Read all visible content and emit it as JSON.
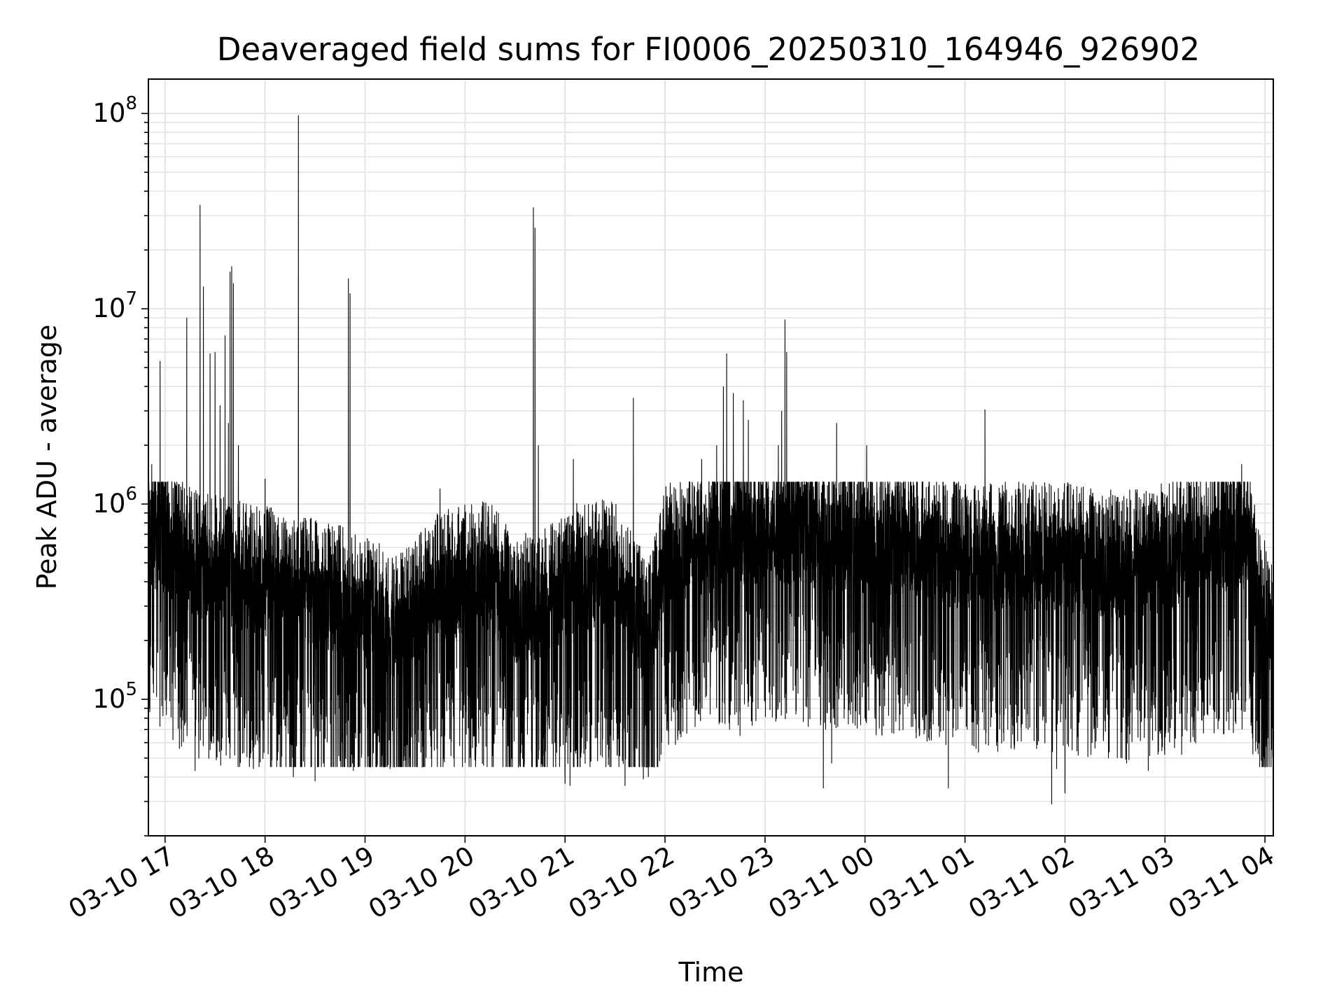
{
  "chart_data": {
    "type": "line",
    "title": "Deaveraged field sums for FI0006_20250310_164946_926902",
    "xlabel": "Time",
    "ylabel": "Peak ADU - average",
    "yscale": "log",
    "xlim": [
      "2025-03-10 16:50",
      "2025-03-11 04:05"
    ],
    "ylim": [
      20000,
      150000000
    ],
    "grid": true,
    "grid_minor": true,
    "line_color": "#000000",
    "x_ticks": [
      {
        "value": "2025-03-10 17:00",
        "label": "03-10 17"
      },
      {
        "value": "2025-03-10 18:00",
        "label": "03-10 18"
      },
      {
        "value": "2025-03-10 19:00",
        "label": "03-10 19"
      },
      {
        "value": "2025-03-10 20:00",
        "label": "03-10 20"
      },
      {
        "value": "2025-03-10 21:00",
        "label": "03-10 21"
      },
      {
        "value": "2025-03-10 22:00",
        "label": "03-10 22"
      },
      {
        "value": "2025-03-10 23:00",
        "label": "03-10 23"
      },
      {
        "value": "2025-03-11 00:00",
        "label": "03-11 00"
      },
      {
        "value": "2025-03-11 01:00",
        "label": "03-11 01"
      },
      {
        "value": "2025-03-11 02:00",
        "label": "03-11 02"
      },
      {
        "value": "2025-03-11 03:00",
        "label": "03-11 03"
      },
      {
        "value": "2025-03-11 04:00",
        "label": "03-11 04"
      }
    ],
    "y_ticks": [
      {
        "value": 100000,
        "base": "10",
        "exp": "5"
      },
      {
        "value": 1000000,
        "base": "10",
        "exp": "6"
      },
      {
        "value": 10000000,
        "base": "10",
        "exp": "7"
      },
      {
        "value": 100000000,
        "base": "10",
        "exp": "8"
      }
    ],
    "baseline_series": [
      [
        "2025-03-10 16:50",
        650000
      ],
      [
        "2025-03-10 17:20",
        420000
      ],
      [
        "2025-03-10 17:45",
        380000
      ],
      [
        "2025-03-10 18:15",
        320000
      ],
      [
        "2025-03-10 18:45",
        280000
      ],
      [
        "2025-03-10 19:20",
        200000
      ],
      [
        "2025-03-10 19:45",
        330000
      ],
      [
        "2025-03-10 20:15",
        380000
      ],
      [
        "2025-03-10 20:30",
        250000
      ],
      [
        "2025-03-10 20:45",
        260000
      ],
      [
        "2025-03-10 21:05",
        360000
      ],
      [
        "2025-03-10 21:30",
        380000
      ],
      [
        "2025-03-10 21:50",
        180000
      ],
      [
        "2025-03-10 22:00",
        450000
      ],
      [
        "2025-03-10 22:30",
        600000
      ],
      [
        "2025-03-10 23:00",
        660000
      ],
      [
        "2025-03-10 23:30",
        620000
      ],
      [
        "2025-03-11 00:00",
        580000
      ],
      [
        "2025-03-11 00:30",
        560000
      ],
      [
        "2025-03-11 01:00",
        470000
      ],
      [
        "2025-03-11 01:30",
        480000
      ],
      [
        "2025-03-11 02:00",
        470000
      ],
      [
        "2025-03-11 02:30",
        420000
      ],
      [
        "2025-03-11 03:00",
        460000
      ],
      [
        "2025-03-11 03:30",
        580000
      ],
      [
        "2025-03-11 03:50",
        600000
      ],
      [
        "2025-03-11 03:55",
        300000
      ],
      [
        "2025-03-11 04:05",
        200000
      ]
    ],
    "spikes": [
      [
        "2025-03-10 16:52",
        1600000
      ],
      [
        "2025-03-10 16:57",
        5400000
      ],
      [
        "2025-03-10 17:13",
        9000000
      ],
      [
        "2025-03-10 17:21",
        34000000
      ],
      [
        "2025-03-10 17:23",
        13000000
      ],
      [
        "2025-03-10 17:27",
        5900000
      ],
      [
        "2025-03-10 17:30",
        6000000
      ],
      [
        "2025-03-10 17:33",
        3200000
      ],
      [
        "2025-03-10 17:36",
        7300000
      ],
      [
        "2025-03-10 17:38",
        2600000
      ],
      [
        "2025-03-10 17:39",
        15500000
      ],
      [
        "2025-03-10 17:40",
        16500000
      ],
      [
        "2025-03-10 17:41",
        13500000
      ],
      [
        "2025-03-10 17:44",
        2000000
      ],
      [
        "2025-03-10 18:00",
        1350000
      ],
      [
        "2025-03-10 18:20",
        98000000
      ],
      [
        "2025-03-10 18:50",
        14300000
      ],
      [
        "2025-03-10 18:51",
        12000000
      ],
      [
        "2025-03-10 19:45",
        1200000
      ],
      [
        "2025-03-10 20:40",
        31000000
      ],
      [
        "2025-03-10 20:41",
        33000000
      ],
      [
        "2025-03-10 20:42",
        26000000
      ],
      [
        "2025-03-10 20:44",
        2000000
      ],
      [
        "2025-03-10 21:05",
        1700000
      ],
      [
        "2025-03-10 21:41",
        3500000
      ],
      [
        "2025-03-10 22:22",
        1700000
      ],
      [
        "2025-03-10 22:31",
        2000000
      ],
      [
        "2025-03-10 22:35",
        4000000
      ],
      [
        "2025-03-10 22:37",
        5900000
      ],
      [
        "2025-03-10 22:41",
        3700000
      ],
      [
        "2025-03-10 22:47",
        3400000
      ],
      [
        "2025-03-10 22:50",
        2700000
      ],
      [
        "2025-03-10 23:08",
        2000000
      ],
      [
        "2025-03-10 23:10",
        3000000
      ],
      [
        "2025-03-10 23:12",
        8800000
      ],
      [
        "2025-03-10 23:13",
        6000000
      ],
      [
        "2025-03-10 23:43",
        2600000
      ],
      [
        "2025-03-11 00:01",
        2000000
      ],
      [
        "2025-03-11 01:12",
        3050000
      ],
      [
        "2025-03-11 03:46",
        1600000
      ]
    ],
    "dips": [
      [
        "2025-03-10 17:18",
        43000
      ],
      [
        "2025-03-10 17:53",
        44000
      ],
      [
        "2025-03-10 18:17",
        40000
      ],
      [
        "2025-03-10 18:30",
        38000
      ],
      [
        "2025-03-10 18:35",
        47000
      ],
      [
        "2025-03-10 18:53",
        43000
      ],
      [
        "2025-03-10 19:15",
        44000
      ],
      [
        "2025-03-10 19:40",
        45000
      ],
      [
        "2025-03-10 20:40",
        45000
      ],
      [
        "2025-03-10 21:00",
        37000
      ],
      [
        "2025-03-10 21:03",
        36000
      ],
      [
        "2025-03-10 21:36",
        36000
      ],
      [
        "2025-03-10 21:47",
        39000
      ],
      [
        "2025-03-10 21:50",
        40000
      ],
      [
        "2025-03-10 22:45",
        65000
      ],
      [
        "2025-03-10 23:35",
        35000
      ],
      [
        "2025-03-10 23:40",
        47000
      ],
      [
        "2025-03-11 00:50",
        35000
      ],
      [
        "2025-03-11 01:52",
        29000
      ],
      [
        "2025-03-11 01:55",
        44000
      ],
      [
        "2025-03-11 02:00",
        33000
      ],
      [
        "2025-03-11 02:18",
        56000
      ],
      [
        "2025-03-11 02:37",
        47000
      ],
      [
        "2025-03-11 02:50",
        43000
      ],
      [
        "2025-03-11 03:10",
        52000
      ],
      [
        "2025-03-11 04:04",
        55000
      ]
    ]
  }
}
